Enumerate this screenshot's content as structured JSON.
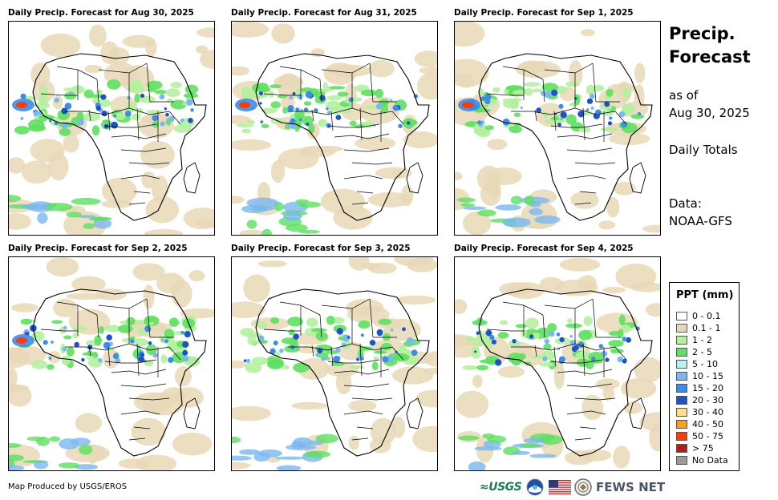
{
  "panels": [
    {
      "title": "Daily Precip. Forecast for Aug 30, 2025"
    },
    {
      "title": "Daily Precip. Forecast for Aug 31, 2025"
    },
    {
      "title": "Daily Precip. Forecast for Sep 1, 2025"
    },
    {
      "title": "Daily Precip. Forecast for Sep 2, 2025"
    },
    {
      "title": "Daily Precip. Forecast for Sep 3, 2025"
    },
    {
      "title": "Daily Precip. Forecast for Sep 4, 2025"
    }
  ],
  "side": {
    "title_line1": "Precip.",
    "title_line2": "Forecast",
    "asof_line1": "as of",
    "asof_line2": "Aug 30, 2025",
    "totals": "Daily Totals",
    "data_line1": "Data:",
    "data_line2": "NOAA-GFS"
  },
  "legend": {
    "title": "PPT (mm)",
    "items": [
      {
        "label": "0 - 0.1",
        "color": "#ffffff"
      },
      {
        "label": "0.1 - 1",
        "color": "#e8d8b6"
      },
      {
        "label": "1 - 2",
        "color": "#b4f0a0"
      },
      {
        "label": "2 - 5",
        "color": "#5ee060"
      },
      {
        "label": "5 - 10",
        "color": "#b8f0f4"
      },
      {
        "label": "10 - 15",
        "color": "#7ab8f0"
      },
      {
        "label": "15 - 20",
        "color": "#3c8ce8"
      },
      {
        "label": "20 - 30",
        "color": "#1c54c8"
      },
      {
        "label": "30 - 40",
        "color": "#f8e090"
      },
      {
        "label": "40 - 50",
        "color": "#f4a020"
      },
      {
        "label": "50 - 75",
        "color": "#f04010"
      },
      {
        "label": "> 75",
        "color": "#b41c1c"
      },
      {
        "label": "No Data",
        "color": "#9a9a9a"
      }
    ]
  },
  "footer": {
    "credit": "Map Produced by USGS/EROS",
    "usgs": "≈USGS",
    "fews": "FEWS NET"
  }
}
